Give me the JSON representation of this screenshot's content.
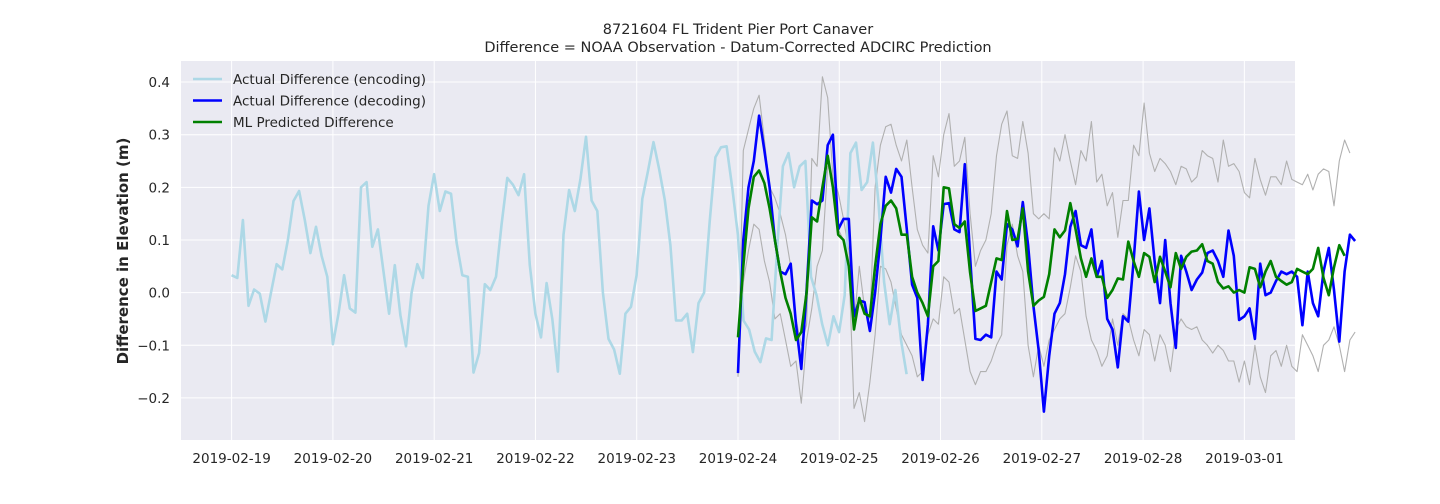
{
  "chart_data": {
    "type": "line",
    "title": "8721604 FL Trident Pier Port Canaver",
    "subtitle": "Difference = NOAA Observation - Datum-Corrected ADCIRC Prediction",
    "xlabel": "",
    "ylabel": "Difference in Elevation (m)",
    "xlim": [
      "2019-02-18T12:00",
      "2019-03-01T12:00"
    ],
    "ylim": [
      -0.28,
      0.44
    ],
    "x_ticks": [
      "2019-02-19",
      "2019-02-20",
      "2019-02-21",
      "2019-02-22",
      "2019-02-23",
      "2019-02-24",
      "2019-02-25",
      "2019-02-26",
      "2019-02-27",
      "2019-02-28",
      "2019-03-01"
    ],
    "y_ticks": [
      "−0.2",
      "−0.1",
      "0.0",
      "0.1",
      "0.2",
      "0.3",
      "0.4"
    ],
    "y_tick_values": [
      -0.2,
      -0.1,
      0.0,
      0.1,
      0.2,
      0.3,
      0.4
    ],
    "grid": true,
    "legend_position": "top-left",
    "style": {
      "plot_bg": "#eaeaf2",
      "grid_color": "#ffffff",
      "colors": {
        "encoding": "#add8e6",
        "decoding": "#0000ff",
        "predicted": "#008000",
        "band": "#b0b0b0"
      }
    },
    "series": [
      {
        "name": "Actual Difference (encoding)",
        "color": "#add8e6",
        "start": "2019-02-19T00:00",
        "step_hours": 1.333,
        "values": [
          0.033,
          0.028,
          0.138,
          -0.025,
          0.006,
          -0.002,
          -0.055,
          0.0,
          0.054,
          0.044,
          0.1,
          0.174,
          0.193,
          0.138,
          0.075,
          0.125,
          0.07,
          0.03,
          -0.098,
          -0.04,
          0.033,
          -0.03,
          -0.038,
          0.2,
          0.21,
          0.087,
          0.12,
          0.04,
          -0.04,
          0.052,
          -0.043,
          -0.102,
          0.0,
          0.054,
          0.028,
          0.165,
          0.225,
          0.155,
          0.192,
          0.188,
          0.095,
          0.033,
          0.03,
          -0.152,
          -0.115,
          0.016,
          0.005,
          0.03,
          0.13,
          0.218,
          0.205,
          0.185,
          0.225,
          0.052,
          -0.04,
          -0.085,
          0.018,
          -0.05,
          -0.15,
          0.11,
          0.195,
          0.155,
          0.215,
          0.296,
          0.175,
          0.155,
          0.0,
          -0.088,
          -0.108,
          -0.154,
          -0.04,
          -0.027,
          0.033,
          0.178,
          0.23,
          0.286,
          0.235,
          0.176,
          0.09,
          -0.053,
          -0.053,
          -0.04,
          -0.113,
          -0.02,
          0.0,
          0.135,
          0.257,
          0.276,
          0.278,
          0.2,
          0.11,
          -0.053,
          -0.07,
          -0.112,
          -0.132,
          -0.087,
          -0.09,
          0.085,
          0.24,
          0.265,
          0.2,
          0.24,
          0.25,
          0.03,
          -0.005,
          -0.06,
          -0.1,
          -0.045,
          -0.075,
          -0.005,
          0.265,
          0.285,
          0.195,
          0.21,
          0.285,
          0.17,
          0.02,
          -0.06,
          0.005,
          -0.09,
          -0.155
        ]
      },
      {
        "name": "Actual Difference (decoding)",
        "color": "#0000ff",
        "start": "2019-02-24T00:00",
        "step_hours": 1.25,
        "values": [
          -0.153,
          0.1,
          0.2,
          0.25,
          0.336,
          0.27,
          0.2,
          0.1,
          0.04,
          0.035,
          0.055,
          -0.06,
          -0.145,
          0.005,
          0.175,
          0.168,
          0.175,
          0.28,
          0.3,
          0.12,
          0.14,
          0.14,
          -0.045,
          -0.015,
          -0.018,
          -0.073,
          0.0,
          0.1,
          0.22,
          0.19,
          0.235,
          0.22,
          0.12,
          0.015,
          -0.01,
          -0.166,
          -0.06,
          0.126,
          0.08,
          0.168,
          0.17,
          0.12,
          0.115,
          0.244,
          0.068,
          -0.088,
          -0.09,
          -0.08,
          -0.085,
          0.04,
          0.025,
          0.13,
          0.12,
          0.088,
          0.172,
          0.09,
          -0.025,
          -0.11,
          -0.226,
          -0.12,
          -0.04,
          -0.02,
          0.035,
          0.125,
          0.155,
          0.09,
          0.085,
          0.12,
          0.03,
          0.06,
          -0.05,
          -0.07,
          -0.142,
          -0.045,
          -0.055,
          0.06,
          0.192,
          0.1,
          0.16,
          0.058,
          -0.02,
          0.1,
          -0.02,
          -0.105,
          0.07,
          0.04,
          0.005,
          0.025,
          0.038,
          0.075,
          0.08,
          0.06,
          0.03,
          0.118,
          0.07,
          -0.052,
          -0.045,
          -0.03,
          -0.088,
          0.055,
          -0.005,
          0.0,
          0.022,
          0.04,
          0.035,
          0.04,
          0.03,
          -0.062,
          0.04,
          -0.02,
          -0.045,
          0.04,
          0.085,
          0.005,
          -0.093,
          0.04,
          0.11,
          0.098
        ]
      },
      {
        "name": "ML Predicted Difference",
        "color": "#008000",
        "start": "2019-02-24T00:00",
        "step_hours": 1.25,
        "values": [
          -0.085,
          0.05,
          0.16,
          0.22,
          0.232,
          0.208,
          0.16,
          0.1,
          0.04,
          -0.01,
          -0.04,
          -0.09,
          -0.075,
          0.0,
          0.143,
          0.135,
          0.2,
          0.26,
          0.2,
          0.11,
          0.1,
          0.05,
          -0.07,
          -0.01,
          -0.04,
          -0.045,
          0.05,
          0.13,
          0.165,
          0.175,
          0.16,
          0.11,
          0.11,
          0.03,
          0.0,
          -0.02,
          -0.045,
          0.05,
          0.06,
          0.2,
          0.198,
          0.13,
          0.123,
          0.135,
          0.038,
          -0.035,
          -0.03,
          -0.025,
          0.02,
          0.065,
          0.062,
          0.155,
          0.1,
          0.102,
          0.16,
          0.04,
          -0.025,
          -0.015,
          -0.008,
          0.035,
          0.12,
          0.105,
          0.118,
          0.17,
          0.12,
          0.065,
          0.03,
          0.065,
          0.03,
          0.03,
          -0.01,
          0.005,
          0.027,
          0.025,
          0.097,
          0.06,
          0.03,
          0.075,
          0.068,
          0.02,
          0.068,
          0.04,
          0.01,
          0.075,
          0.045,
          0.068,
          0.078,
          0.08,
          0.092,
          0.06,
          0.055,
          0.02,
          0.008,
          0.012,
          0.0,
          0.005,
          0.0,
          0.048,
          0.045,
          0.01,
          0.04,
          0.06,
          0.03,
          0.022,
          0.015,
          0.02,
          0.045,
          0.04,
          0.035,
          0.045,
          0.085,
          0.028,
          -0.005,
          0.048,
          0.09,
          0.07
        ]
      }
    ],
    "band_lines": [
      {
        "start": "2019-02-24T00:00",
        "step_hours": 1.25,
        "values": [
          -0.16,
          0.27,
          0.31,
          0.35,
          0.375,
          0.29,
          0.2,
          0.18,
          0.15,
          0.11,
          0.05,
          -0.05,
          -0.1,
          -0.06,
          0.255,
          0.24,
          0.41,
          0.37,
          0.22,
          0.19,
          0.14,
          0.08,
          -0.06,
          0.05,
          -0.03,
          -0.05,
          0.2,
          0.28,
          0.315,
          0.32,
          0.28,
          0.25,
          0.29,
          0.2,
          0.12,
          0.09,
          0.075,
          0.26,
          0.22,
          0.3,
          0.34,
          0.24,
          0.25,
          0.295,
          0.15,
          0.05,
          0.08,
          0.1,
          0.15,
          0.26,
          0.32,
          0.345,
          0.26,
          0.255,
          0.325,
          0.265,
          0.15,
          0.14,
          0.15,
          0.14,
          0.275,
          0.25,
          0.3,
          0.25,
          0.205,
          0.27,
          0.25,
          0.325,
          0.21,
          0.225,
          0.165,
          0.19,
          0.105,
          0.175,
          0.175,
          0.28,
          0.26,
          0.36,
          0.265,
          0.23,
          0.255,
          0.245,
          0.23,
          0.205,
          0.24,
          0.235,
          0.21,
          0.22,
          0.27,
          0.26,
          0.255,
          0.21,
          0.29,
          0.24,
          0.245,
          0.23,
          0.19,
          0.18,
          0.255,
          0.215,
          0.185,
          0.22,
          0.22,
          0.205,
          0.25,
          0.215,
          0.21,
          0.205,
          0.225,
          0.195,
          0.225,
          0.235,
          0.23,
          0.165,
          0.25,
          0.29,
          0.265
        ]
      },
      {
        "start": "2019-02-24T00:00",
        "step_hours": 1.25,
        "values": [
          -0.155,
          0.02,
          0.08,
          0.13,
          0.12,
          0.06,
          0.02,
          -0.05,
          -0.04,
          -0.09,
          -0.14,
          -0.13,
          -0.21,
          -0.09,
          -0.03,
          0.05,
          0.08,
          0.24,
          0.22,
          0.12,
          0.1,
          0.06,
          -0.22,
          -0.19,
          -0.245,
          -0.17,
          -0.08,
          0.05,
          0.045,
          0.02,
          -0.03,
          -0.08,
          -0.1,
          -0.12,
          -0.16,
          -0.15,
          -0.08,
          -0.05,
          -0.06,
          0.03,
          0.02,
          -0.04,
          -0.03,
          -0.09,
          -0.15,
          -0.175,
          -0.15,
          -0.15,
          -0.13,
          -0.1,
          -0.08,
          0.09,
          0.13,
          0.07,
          0.04,
          -0.1,
          -0.16,
          -0.1,
          -0.14,
          -0.09,
          -0.07,
          -0.05,
          -0.04,
          0.01,
          0.07,
          0.04,
          -0.045,
          -0.09,
          -0.11,
          -0.14,
          -0.12,
          -0.05,
          -0.1,
          -0.04,
          -0.05,
          -0.09,
          -0.12,
          -0.07,
          -0.08,
          -0.13,
          -0.08,
          -0.1,
          -0.15,
          -0.07,
          -0.05,
          -0.065,
          -0.07,
          -0.065,
          -0.09,
          -0.1,
          -0.115,
          -0.1,
          -0.11,
          -0.13,
          -0.13,
          -0.17,
          -0.13,
          -0.175,
          -0.1,
          -0.16,
          -0.19,
          -0.12,
          -0.11,
          -0.14,
          -0.1,
          -0.14,
          -0.15,
          -0.08,
          -0.1,
          -0.12,
          -0.15,
          -0.1,
          -0.09,
          -0.065,
          -0.1,
          -0.15,
          -0.09,
          -0.075
        ]
      }
    ]
  }
}
